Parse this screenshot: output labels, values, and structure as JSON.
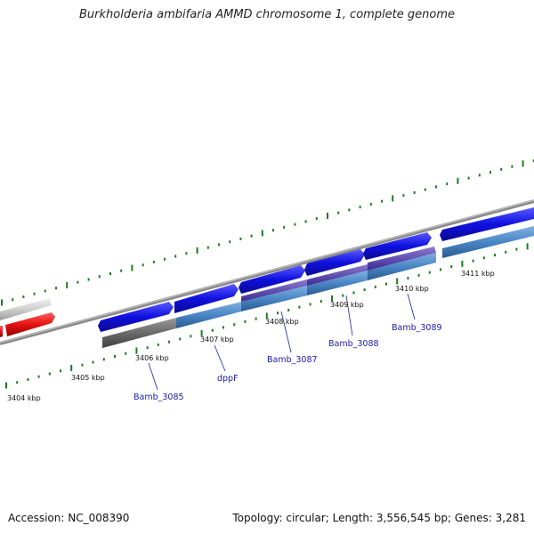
{
  "title": "Burkholderia ambifaria AMMD chromosome 1, complete genome",
  "footer": {
    "accession": "Accession: NC_008390",
    "summary": "Topology: circular; Length: 3,556,545 bp; Genes: 3,281"
  },
  "ruler_labels": [
    "3404 kbp",
    "3405 kbp",
    "3406 kbp",
    "3407 kbp",
    "3408 kbp",
    "3409 kbp",
    "3410 kbp",
    "3411 kbp"
  ],
  "gene_labels": [
    "Bamb_3085",
    "dppF",
    "Bamb_3087",
    "Bamb_3088",
    "Bamb_3089"
  ],
  "colors": {
    "forward_gene": "#1010e0",
    "cds_light": "#4a86c6",
    "cds_gray": "#6a6a6a",
    "red_gene": "#e81010",
    "ruler_tick": "#1f7a1f",
    "backbone": "#8a8a8a",
    "label_blue": "#1a1aa8"
  }
}
